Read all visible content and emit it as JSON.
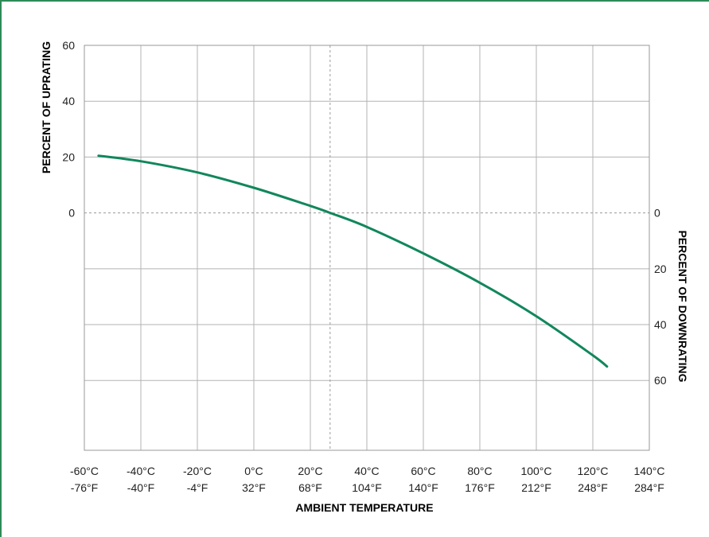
{
  "chart_data": {
    "type": "line",
    "title": "",
    "xlabel": "AMBIENT TEMPERATURE",
    "ylabel_left": "PERCENT OF UPRATING",
    "ylabel_right": "PERCENT OF DOWNRATING",
    "x_ticks_c": [
      "-60°C",
      "-40°C",
      "-20°C",
      "0°C",
      "20°C",
      "40°C",
      "60°C",
      "80°C",
      "100°C",
      "120°C",
      "140°C"
    ],
    "x_ticks_f": [
      "-76°F",
      "-40°F",
      "-4°F",
      "32°F",
      "68°F",
      "104°F",
      "140°F",
      "176°F",
      "212°F",
      "248°F",
      "284°F"
    ],
    "y_ticks_left": [
      "60",
      "40",
      "20",
      "0"
    ],
    "y_ticks_right": [
      "0",
      "20",
      "40",
      "60"
    ],
    "xlim": [
      -60,
      140
    ],
    "ylim": [
      -85,
      60
    ],
    "grid": true,
    "reference_lines": {
      "x": 27,
      "y": 0
    },
    "colors": {
      "line": "#11875c",
      "grid": "#b3b3b3",
      "reference": "#9a9a9a",
      "frame": "#2e8b57"
    },
    "series": [
      {
        "x": [
          -55,
          -40,
          -20,
          0,
          20,
          27,
          40,
          60,
          80,
          100,
          120,
          125
        ],
        "y": [
          20.5,
          18.5,
          14.5,
          9,
          2.5,
          0,
          -5,
          -14.5,
          -25,
          -37,
          -51,
          -55
        ]
      }
    ]
  }
}
